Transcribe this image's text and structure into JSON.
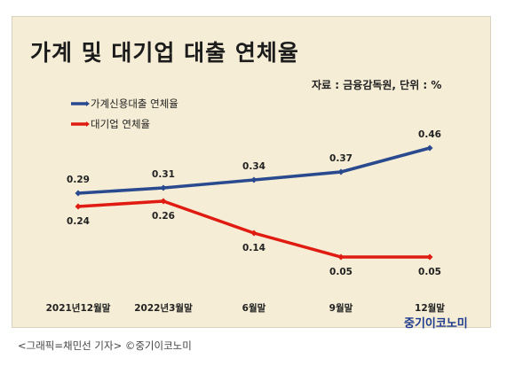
{
  "title": "가계 및 대기업 대출 연체율",
  "source_note": "자료 : 금융감독원, 단위 : %",
  "brand": "중기이코노미",
  "caption": "<그래픽=채민선 기자>   ©중기이코노미",
  "colors": {
    "series1": "#2a4a8f",
    "series2": "#e01b12",
    "background": "#f5edd5"
  },
  "chart_data": {
    "type": "line",
    "categories": [
      "2021년12월말",
      "2022년3월말",
      "6월말",
      "9월말",
      "12월말"
    ],
    "series": [
      {
        "name": "가계신용대출 연체율",
        "values": [
          0.29,
          0.31,
          0.34,
          0.37,
          0.46
        ],
        "value_labels": [
          "0.29",
          "0.31",
          "0.34",
          "0.37",
          "0.46"
        ]
      },
      {
        "name": "대기업 연체율",
        "values": [
          0.24,
          0.26,
          0.14,
          0.05,
          0.05
        ],
        "value_labels": [
          "0.24",
          "0.26",
          "0.14",
          "0.05",
          "0.05"
        ]
      }
    ],
    "title": "가계 및 대기업 대출 연체율",
    "xlabel": "",
    "ylabel": "",
    "ylim": [
      0,
      0.5
    ],
    "grid": false,
    "legend": "top-left"
  }
}
